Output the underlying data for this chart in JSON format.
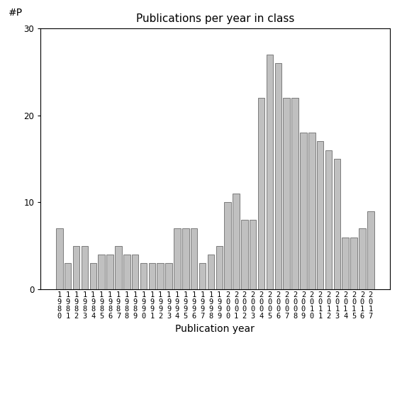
{
  "title": "Publications per year in class",
  "xlabel": "Publication year",
  "ylabel": "#P",
  "years": [
    "1980",
    "1981",
    "1982",
    "1983",
    "1984",
    "1985",
    "1986",
    "1987",
    "1988",
    "1989",
    "1990",
    "1991",
    "1992",
    "1993",
    "1994",
    "1995",
    "1996",
    "1997",
    "1998",
    "1999",
    "2000",
    "2001",
    "2002",
    "2003",
    "2004",
    "2005",
    "2006",
    "2007",
    "2008",
    "2009",
    "2010",
    "2011",
    "2012",
    "2013",
    "2014",
    "2015",
    "2016",
    "2017"
  ],
  "values": [
    7,
    3,
    5,
    5,
    3,
    4,
    4,
    5,
    4,
    4,
    3,
    3,
    3,
    3,
    7,
    7,
    7,
    3,
    4,
    5,
    10,
    11,
    8,
    8,
    22,
    27,
    26,
    22,
    22,
    18,
    18,
    17,
    16,
    15,
    6,
    6,
    7,
    9
  ],
  "bar_color": "#c0c0c0",
  "bar_edgecolor": "#555555",
  "ylim": [
    0,
    30
  ],
  "yticks": [
    0,
    10,
    20,
    30
  ],
  "background_color": "#ffffff",
  "title_fontsize": 11,
  "axis_label_fontsize": 10,
  "tick_fontsize": 7.5,
  "bar_linewidth": 0.5
}
